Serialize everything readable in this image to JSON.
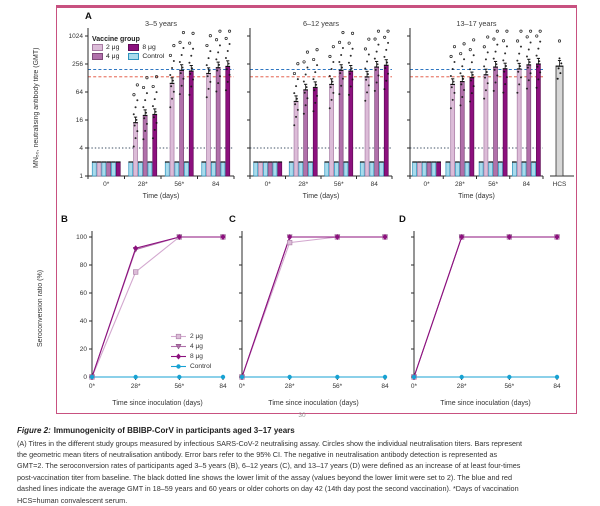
{
  "page_number": "30",
  "colors": {
    "frame_pink": "#c85180",
    "axis": "#2b2b2b",
    "dose2_fill": "#dcbcd8",
    "dose2_stroke": "#a87ca4",
    "dose2_line": "#d3a8cf",
    "dose4_fill": "#b170ab",
    "dose4_stroke": "#7e4a79",
    "dose8_fill": "#8c107e",
    "dose8_stroke": "#600a56",
    "control_fill": "#a9dbec",
    "control_stroke": "#2e93bd",
    "control_line": "#17a2d3",
    "hcs_fill": "#d7d7d7",
    "hcs_stroke": "#333333",
    "blue_dashed": "#2e76c1",
    "red_dashed": "#e04a35",
    "black_dotted": "#3d4f63",
    "scatter_dot": "#161616"
  },
  "chart_data": [
    {
      "id": "A",
      "panel_label": "A",
      "type": "bar",
      "scale": "log4",
      "ylabel": "MN₅₀, neutralising antibody titre (GMT)",
      "xlabel": "Time (days)",
      "categories": [
        "0*",
        "28*",
        "56*",
        "84"
      ],
      "yticks": [
        1,
        4,
        16,
        64,
        256,
        1024
      ],
      "ytick_labels": [
        "1024",
        "256",
        "64",
        "16",
        "4",
        "1"
      ],
      "ylim": [
        1,
        1024
      ],
      "legend": {
        "title": "Vaccine group",
        "items": [
          "2 μg",
          "4 μg",
          "8 μg",
          "Control"
        ]
      },
      "reference_lines": {
        "blue_dashed_gmt_18_59y": 195,
        "red_dashed_gmt_60y_plus": 136,
        "black_dotted_assay_lower_limit": 4
      },
      "hcs_label": "HCS",
      "panels": [
        {
          "title": "3–5 years",
          "series": [
            {
              "name": "2 μg",
              "values": [
                2,
                14,
                98,
                160
              ]
            },
            {
              "name": "4 μg",
              "values": [
                2,
                20,
                187,
                213
              ]
            },
            {
              "name": "8 μg",
              "values": [
                2,
                21,
                180,
                227
              ]
            },
            {
              "name": "Control",
              "values": [
                2,
                2,
                2,
                2
              ]
            }
          ]
        },
        {
          "title": "6–12 years",
          "series": [
            {
              "name": "2 μg",
              "values": [
                2,
                40,
                93,
                135
              ]
            },
            {
              "name": "4 μg",
              "values": [
                2,
                71,
                187,
                220
              ]
            },
            {
              "name": "8 μg",
              "values": [
                2,
                80,
                180,
                240
              ]
            },
            {
              "name": "Control",
              "values": [
                2,
                2,
                2,
                2
              ]
            }
          ]
        },
        {
          "title": "13–17 years",
          "series": [
            {
              "name": "2 μg",
              "values": [
                2,
                93,
                150,
                200
              ]
            },
            {
              "name": "4 μg",
              "values": [
                2,
                107,
                220,
                245
              ]
            },
            {
              "name": "8 μg",
              "values": [
                2,
                130,
                202,
                256
              ]
            },
            {
              "name": "Control",
              "values": [
                2,
                2,
                2,
                2
              ]
            }
          ],
          "hcs_value": 230
        }
      ]
    },
    {
      "id": "B",
      "panel_label": "B",
      "type": "line",
      "ylabel": "Seroconversion ratio (%)",
      "xlabel": "Time since inoculation (days)",
      "x": [
        "0*",
        "28*",
        "56*",
        "84"
      ],
      "yticks": [
        0,
        20,
        40,
        60,
        80,
        100
      ],
      "ylim": [
        0,
        100
      ],
      "legend": {
        "items": [
          "2 μg",
          "4 μg",
          "8 μg",
          "Control"
        ],
        "position": "right-middle"
      },
      "series": [
        {
          "name": "2 μg",
          "values": [
            0,
            75,
            100,
            100
          ]
        },
        {
          "name": "4 μg",
          "values": [
            0,
            91,
            100,
            100
          ]
        },
        {
          "name": "8 μg",
          "values": [
            0,
            92,
            100,
            100
          ]
        },
        {
          "name": "Control",
          "values": [
            0,
            0,
            0,
            0
          ]
        }
      ]
    },
    {
      "id": "C",
      "panel_label": "C",
      "type": "line",
      "xlabel": "Time since inoculation (days)",
      "x": [
        "0*",
        "28*",
        "56*",
        "84"
      ],
      "yticks": [
        0,
        20,
        40,
        60,
        80,
        100
      ],
      "ylim": [
        0,
        100
      ],
      "series": [
        {
          "name": "2 μg",
          "values": [
            0,
            96,
            100,
            100
          ]
        },
        {
          "name": "4 μg",
          "values": [
            0,
            100,
            100,
            100
          ]
        },
        {
          "name": "8 μg",
          "values": [
            0,
            100,
            100,
            100
          ]
        },
        {
          "name": "Control",
          "values": [
            0,
            0,
            0,
            0
          ]
        }
      ]
    },
    {
      "id": "D",
      "panel_label": "D",
      "type": "line",
      "xlabel": "Time since inoculation (days)",
      "x": [
        "0*",
        "28*",
        "56*",
        "84"
      ],
      "yticks": [
        0,
        20,
        40,
        60,
        80,
        100
      ],
      "ylim": [
        0,
        100
      ],
      "series": [
        {
          "name": "2 μg",
          "values": [
            0,
            100,
            100,
            100
          ]
        },
        {
          "name": "4 μg",
          "values": [
            0,
            100,
            100,
            100
          ]
        },
        {
          "name": "8 μg",
          "values": [
            0,
            100,
            100,
            100
          ]
        },
        {
          "name": "Control",
          "values": [
            0,
            0,
            0,
            0
          ]
        }
      ]
    }
  ],
  "caption": {
    "figure_label": "Figure 2:",
    "title": "Immunogenicity of BBIBP-CorV in participants aged 3–17 years",
    "body": "(A) Titres in the different study groups measured by infectious SARS-CoV-2 neutralising assay. Circles show the individual neutralisation titers. Bars represent the geometric mean titers of neutralisation antibody. Error bars refer to the 95% CI. The negative in neutralisation antibody detection is represented as GMT=2. The seroconversion rates of participants aged 3–5 years (B), 6–12 years (C), and 13–17 years (D) were defined as an increase of at least four-times post-vaccination titer from baseline. The black dotted line shows the lower limit of the assay (values beyond the lower limit were set to 2). The blue and red dashed lines indicate the average GMT in 18–59 years and 60 years or older cohorts on day 42 (14th day post the second vaccination). *Days of vaccination HCS=human convalescent serum."
  }
}
